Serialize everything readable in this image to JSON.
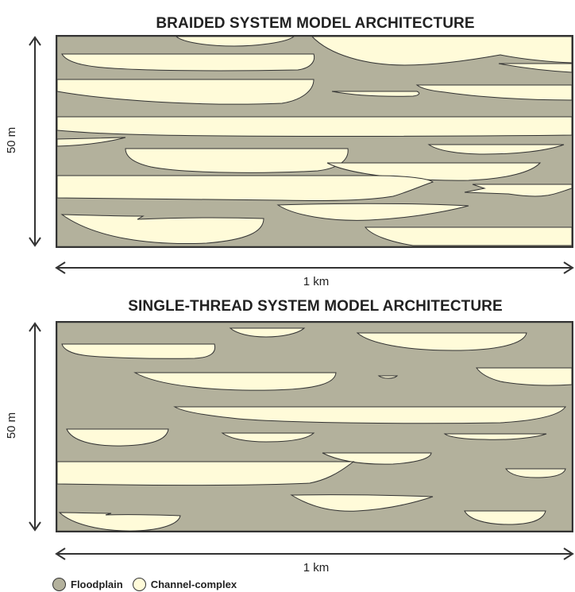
{
  "top": {
    "title": "BRAIDED SYSTEM MODEL ARCHITECTURE",
    "vertical_scale": "50 m",
    "horizontal_scale": "1 km"
  },
  "bottom": {
    "title": "SINGLE-THREAD SYSTEM MODEL ARCHITECTURE",
    "vertical_scale": "50 m",
    "horizontal_scale": "1 km"
  },
  "legend": {
    "items": [
      {
        "label": "Floodplain",
        "color": "#b3b19c"
      },
      {
        "label": "Channel-complex",
        "color": "#fffbd9"
      }
    ]
  },
  "colors": {
    "floodplain": "#b3b19c",
    "channel": "#fffbd9",
    "outline": "#333333"
  }
}
